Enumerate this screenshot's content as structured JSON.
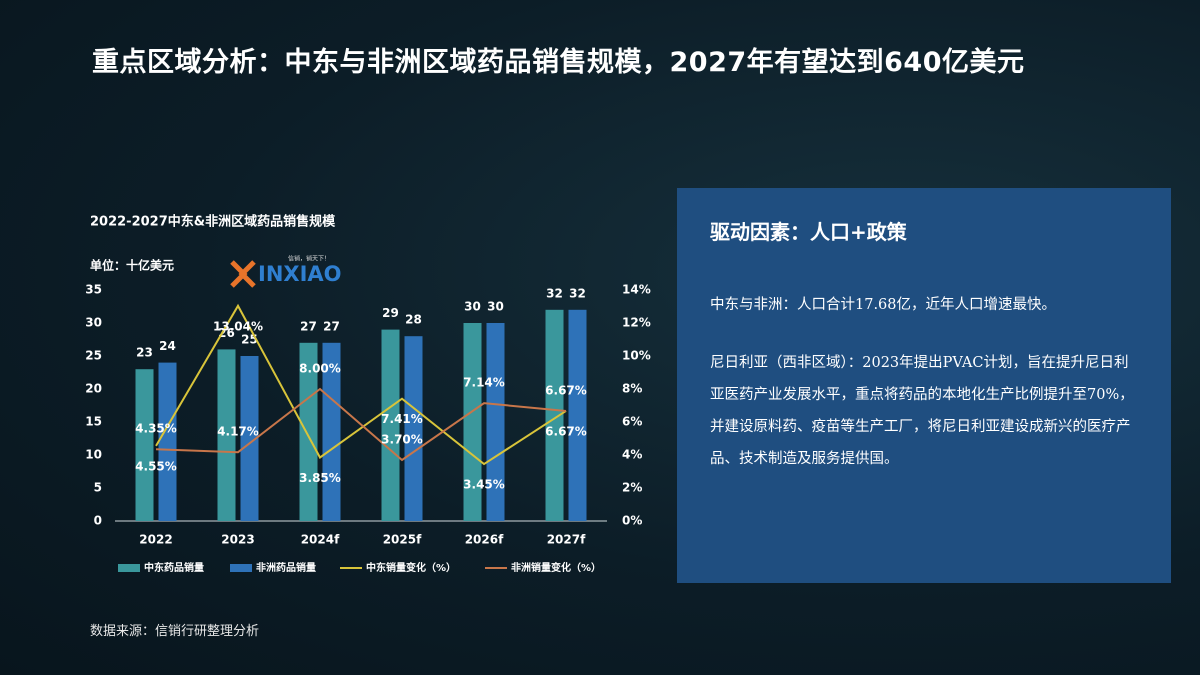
{
  "title": "重点区域分析：中东与非洲区域药品销售规模，2027年有望达到640亿美元",
  "chart_data": {
    "type": "bar",
    "title": "2022-2027中东&非洲区域药品销售规模",
    "unit": "单位：十亿美元",
    "categories": [
      "2022",
      "2023",
      "2024f",
      "2025f",
      "2026f",
      "2027f"
    ],
    "series": [
      {
        "name": "中东药品销量",
        "color": "#3a979c",
        "values": [
          23,
          26,
          27,
          29,
          30,
          32
        ]
      },
      {
        "name": "非洲药品销量",
        "color": "#2e72b8",
        "values": [
          24,
          25,
          27,
          28,
          30,
          32
        ]
      },
      {
        "name": "中东销量变化（%）",
        "type": "line",
        "axis": "y2",
        "color": "#d8c43a",
        "values": [
          4.55,
          13.04,
          3.85,
          7.41,
          3.45,
          6.67
        ],
        "value_labels": [
          "4.55%",
          "13.04%",
          "3.85%",
          "7.41%",
          "3.45%",
          "6.67%"
        ]
      },
      {
        "name": "非洲销量变化（%）",
        "type": "line",
        "axis": "y2",
        "color": "#c8764a",
        "values": [
          4.35,
          4.17,
          8.0,
          3.7,
          7.14,
          6.67
        ],
        "value_labels": [
          "4.35%",
          "4.17%",
          "8.00%",
          "3.70%",
          "7.14%",
          "6.67%"
        ]
      }
    ],
    "ylim": [
      0,
      35
    ],
    "yticks": [
      0,
      5,
      10,
      15,
      20,
      25,
      30,
      35
    ],
    "y2lim": [
      0,
      14
    ],
    "y2ticks": [
      {
        "value": 0,
        "label": "0%"
      },
      {
        "value": 2,
        "label": "2%"
      },
      {
        "value": 4,
        "label": "4%"
      },
      {
        "value": 6,
        "label": "6%"
      },
      {
        "value": 8,
        "label": "8%"
      },
      {
        "value": 10,
        "label": "10%"
      },
      {
        "value": 12,
        "label": "12%"
      },
      {
        "value": 14,
        "label": "14%"
      }
    ]
  },
  "logo": {
    "text": "INXIAO",
    "tagline": "信销，销天下！"
  },
  "source": "数据来源：信销行研整理分析",
  "panel": {
    "heading": "驱动因素：人口+政策",
    "paragraphs": [
      "中东与非洲：人口合计17.68亿，近年人口增速最快。",
      "尼日利亚（西非区域）：2023年提出PVAC计划，旨在提升尼日利亚医药产业发展水平，重点将药品的本地化生产比例提升至70%，并建设原料药、疫苗等生产工厂，将尼日利亚建设成新兴的医疗产品、技术制造及服务提供国。"
    ]
  }
}
